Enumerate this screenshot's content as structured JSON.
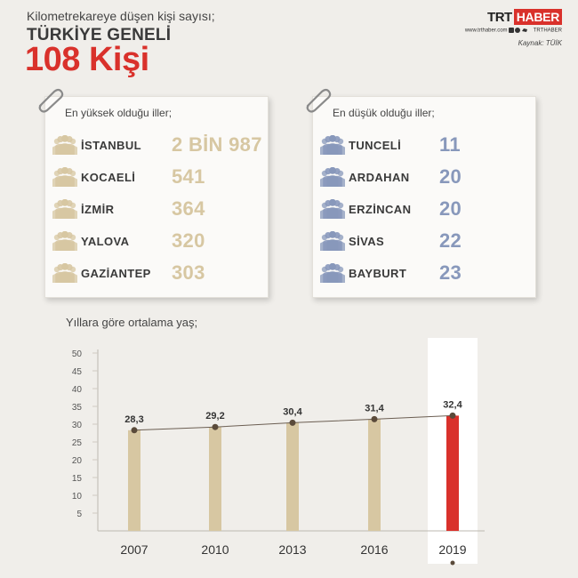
{
  "header": {
    "subtitle": "Kilometrekareye düşen kişi sayısı;",
    "title": "TÜRKİYE GENELİ",
    "value": "108 Kişi"
  },
  "brand": {
    "trt": "TRT",
    "haber": "HABER",
    "web": "www.trthaber.com",
    "social": "TRTHABER",
    "source": "Kaynak: TÜİK"
  },
  "highest": {
    "heading": "En yüksek olduğu iller;",
    "items": [
      {
        "city": "İSTANBUL",
        "value": "2 BİN 987"
      },
      {
        "city": "KOCAELİ",
        "value": "541"
      },
      {
        "city": "İZMİR",
        "value": "364"
      },
      {
        "city": "YALOVA",
        "value": "320"
      },
      {
        "city": "GAZİANTEP",
        "value": "303"
      }
    ]
  },
  "lowest": {
    "heading": "En düşük olduğu iller;",
    "items": [
      {
        "city": "TUNCELİ",
        "value": "11"
      },
      {
        "city": "ARDAHAN",
        "value": "20"
      },
      {
        "city": "ERZİNCAN",
        "value": "20"
      },
      {
        "city": "SİVAS",
        "value": "22"
      },
      {
        "city": "BAYBURT",
        "value": "23"
      }
    ]
  },
  "colors": {
    "accent": "#d9312b",
    "bar": "#d7c7a2",
    "highlight_bar": "#d9312b",
    "low_value": "#8898bb",
    "line": "#5a4a3a"
  },
  "chart_data": {
    "type": "bar",
    "title": "Yıllara göre ortalama yaş;",
    "categories": [
      "2007",
      "2010",
      "2013",
      "2016",
      "2019"
    ],
    "values": [
      28.3,
      29.2,
      30.4,
      31.4,
      32.4
    ],
    "value_labels": [
      "28,3",
      "29,2",
      "30,4",
      "31,4",
      "32,4"
    ],
    "y_ticks": [
      "5",
      "10",
      "15",
      "20",
      "25",
      "30",
      "35",
      "40",
      "45",
      "50"
    ],
    "ylim": [
      0,
      50
    ],
    "highlight_category": "2019",
    "line_overlay": true,
    "grid": false
  }
}
